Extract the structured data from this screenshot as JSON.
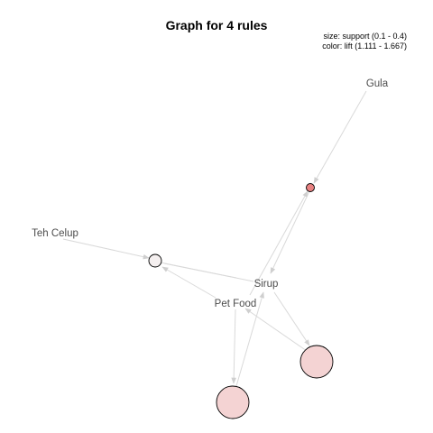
{
  "title": "Graph for 4 rules",
  "legend": {
    "size_text": "size: support (0.1 - 0.4)",
    "color_text": "color: lift (1.111 - 1.667)"
  },
  "colors": {
    "edge": "#d9d9d9",
    "arrow": "#cfcfcf",
    "label": "#4d4d4d",
    "node_border": "#000000"
  },
  "items": [
    {
      "id": "gula",
      "label": "Gula"
    },
    {
      "id": "teh-celup",
      "label": "Teh Celup"
    },
    {
      "id": "sirup",
      "label": "Sirup"
    },
    {
      "id": "pet-food",
      "label": "Pet Food"
    }
  ],
  "rules": [
    {
      "id": "rule1",
      "lhs": [
        "gula"
      ],
      "rhs": [
        "sirup"
      ],
      "support": 0.1,
      "lift": 1.667,
      "color": "#e88282"
    },
    {
      "id": "rule2",
      "lhs": [
        "teh-celup",
        "sirup"
      ],
      "rhs": [
        "pet-food"
      ],
      "support": 0.1,
      "lift": 1.111,
      "color": "#f5f0f0"
    },
    {
      "id": "rule3",
      "lhs": [
        "sirup"
      ],
      "rhs": [
        "pet-food"
      ],
      "support": 0.4,
      "lift": 1.25,
      "color": "#f4d3d3"
    },
    {
      "id": "rule4",
      "lhs": [
        "pet-food"
      ],
      "rhs": [
        "sirup"
      ],
      "support": 0.4,
      "lift": 1.25,
      "color": "#f4d3d3"
    }
  ]
}
